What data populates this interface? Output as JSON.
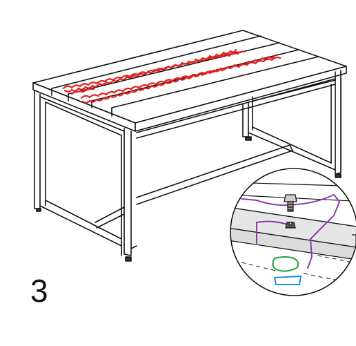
{
  "step": {
    "number": "3"
  },
  "colors": {
    "line": "#111111",
    "scribble_red": "#e02020",
    "marker_purple": "#8a3aa8",
    "marker_green": "#1aa33a",
    "marker_blue": "#1a8fd6",
    "panel_gray": "#e6e6e6"
  },
  "icons": {
    "bolt": "hex-bolt-icon",
    "nut": "nut-icon",
    "table": "bench-table-drawing"
  }
}
